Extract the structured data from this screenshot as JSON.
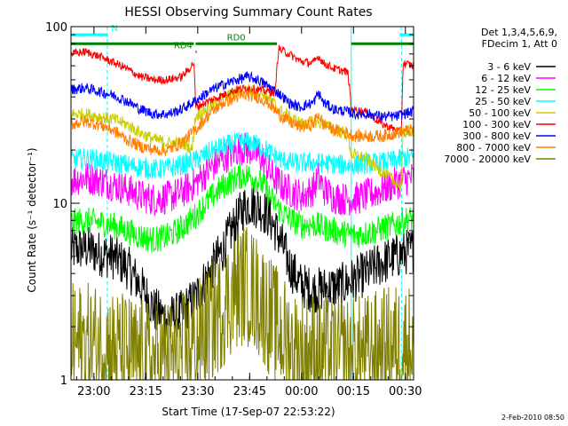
{
  "chart_data": {
    "type": "line",
    "title": "HESSI Observing Summary Count Rates",
    "xlabel": "Start Time (17-Sep-07 22:53:22)",
    "ylabel": "Count Rate (s⁻¹ detector⁻¹)",
    "x_range_min": [
      0,
      99
    ],
    "y_range": [
      1,
      100
    ],
    "y_scale": "log",
    "x_ticks": [
      {
        "t": 6.63,
        "label": "23:00"
      },
      {
        "t": 21.63,
        "label": "23:15"
      },
      {
        "t": 36.63,
        "label": "23:30"
      },
      {
        "t": 51.63,
        "label": "23:45"
      },
      {
        "t": 66.63,
        "label": "00:00"
      },
      {
        "t": 81.63,
        "label": "00:15"
      },
      {
        "t": 96.63,
        "label": "00:30"
      }
    ],
    "y_ticks": [
      {
        "v": 1,
        "label": "1"
      },
      {
        "v": 10,
        "label": "10"
      },
      {
        "v": 100,
        "label": "100"
      }
    ],
    "legend_header": [
      "Det 1,3,4,5,6,9,",
      "FDecim 1, Att 0"
    ],
    "legend_placement": "right",
    "series": [
      {
        "name": "3 - 6 keV",
        "color": "#000000",
        "points": [
          [
            0,
            5.4
          ],
          [
            4,
            5.6
          ],
          [
            8,
            5.2
          ],
          [
            12,
            5.0
          ],
          [
            16,
            4.4
          ],
          [
            20,
            3.4
          ],
          [
            24,
            2.5
          ],
          [
            28,
            2.2
          ],
          [
            32,
            2.4
          ],
          [
            36,
            2.9
          ],
          [
            40,
            4.0
          ],
          [
            44,
            5.5
          ],
          [
            48,
            8.0
          ],
          [
            50,
            9.5
          ],
          [
            52,
            10.0
          ],
          [
            54,
            9.6
          ],
          [
            57,
            8.5
          ],
          [
            60,
            6.5
          ],
          [
            63,
            4.5
          ],
          [
            66,
            3.5
          ],
          [
            70,
            3.2
          ],
          [
            74,
            3.3
          ],
          [
            78,
            3.4
          ],
          [
            82,
            3.7
          ],
          [
            86,
            4.1
          ],
          [
            90,
            4.6
          ],
          [
            94,
            5.0
          ],
          [
            96,
            5.2
          ],
          [
            99,
            5.5
          ]
        ]
      },
      {
        "name": "6 - 12 keV",
        "color": "#ff00ff",
        "points": [
          [
            0,
            13.5
          ],
          [
            4,
            14.0
          ],
          [
            8,
            13.5
          ],
          [
            12,
            12.8
          ],
          [
            16,
            12.0
          ],
          [
            20,
            11.0
          ],
          [
            24,
            10.5
          ],
          [
            28,
            10.8
          ],
          [
            32,
            11.5
          ],
          [
            36,
            13.0
          ],
          [
            40,
            15.5
          ],
          [
            44,
            18.0
          ],
          [
            48,
            20.0
          ],
          [
            50,
            20.5
          ],
          [
            52,
            20.0
          ],
          [
            55,
            18.0
          ],
          [
            58,
            14.5
          ],
          [
            61,
            12.5
          ],
          [
            64,
            11.5
          ],
          [
            67,
            11.0
          ],
          [
            70,
            12.0
          ],
          [
            71.5,
            14.0
          ],
          [
            73,
            12.0
          ],
          [
            76,
            10.8
          ],
          [
            80,
            10.5
          ],
          [
            84,
            10.8
          ],
          [
            88,
            11.5
          ],
          [
            92,
            12.5
          ],
          [
            96,
            13.5
          ],
          [
            99,
            14.0
          ]
        ]
      },
      {
        "name": "12 - 25 keV",
        "color": "#00ff00",
        "points": [
          [
            0,
            7.8
          ],
          [
            4,
            8.0
          ],
          [
            8,
            7.8
          ],
          [
            12,
            7.5
          ],
          [
            16,
            7.0
          ],
          [
            20,
            6.5
          ],
          [
            24,
            6.2
          ],
          [
            28,
            6.5
          ],
          [
            32,
            7.2
          ],
          [
            36,
            8.5
          ],
          [
            40,
            10.5
          ],
          [
            44,
            12.5
          ],
          [
            48,
            14.0
          ],
          [
            50,
            14.5
          ],
          [
            52,
            14.2
          ],
          [
            55,
            13.0
          ],
          [
            58,
            10.5
          ],
          [
            61,
            8.8
          ],
          [
            64,
            8.0
          ],
          [
            67,
            7.5
          ],
          [
            70,
            7.6
          ],
          [
            74,
            7.2
          ],
          [
            78,
            6.8
          ],
          [
            82,
            6.6
          ],
          [
            86,
            6.8
          ],
          [
            90,
            7.2
          ],
          [
            94,
            7.6
          ],
          [
            96,
            8.0
          ],
          [
            99,
            8.2
          ]
        ]
      },
      {
        "name": "25 - 50 keV",
        "color": "#00ffff",
        "points": [
          [
            0,
            17.5
          ],
          [
            4,
            18.0
          ],
          [
            8,
            17.5
          ],
          [
            12,
            17.0
          ],
          [
            16,
            16.5
          ],
          [
            20,
            16.0
          ],
          [
            24,
            15.5
          ],
          [
            28,
            15.8
          ],
          [
            32,
            16.5
          ],
          [
            36,
            17.5
          ],
          [
            40,
            19.5
          ],
          [
            44,
            21.0
          ],
          [
            48,
            22.0
          ],
          [
            50,
            22.5
          ],
          [
            52,
            22.0
          ],
          [
            55,
            21.0
          ],
          [
            58,
            19.0
          ],
          [
            61,
            17.5
          ],
          [
            64,
            17.0
          ],
          [
            67,
            16.8
          ],
          [
            70,
            17.0
          ],
          [
            74,
            16.8
          ],
          [
            78,
            16.5
          ],
          [
            82,
            16.5
          ],
          [
            86,
            16.8
          ],
          [
            90,
            17.0
          ],
          [
            94,
            17.5
          ],
          [
            96,
            18.0
          ],
          [
            99,
            18.2
          ]
        ]
      },
      {
        "name": "50 - 100 keV",
        "color": "#cccc00",
        "points": [
          [
            0,
            32
          ],
          [
            4,
            32
          ],
          [
            8,
            31
          ],
          [
            12,
            30
          ],
          [
            16,
            28
          ],
          [
            20,
            25
          ],
          [
            24,
            23
          ],
          [
            28,
            22
          ],
          [
            32,
            22
          ],
          [
            34,
            21
          ],
          [
            35,
            20
          ],
          [
            36,
            31
          ],
          [
            40,
            35
          ],
          [
            44,
            39
          ],
          [
            48,
            43
          ],
          [
            51,
            44
          ],
          [
            54,
            43
          ],
          [
            57,
            40
          ],
          [
            59,
            36
          ],
          [
            60,
            34
          ],
          [
            64,
            30
          ],
          [
            67,
            28
          ],
          [
            70,
            29
          ],
          [
            73,
            28
          ],
          [
            76,
            26
          ],
          [
            79,
            25
          ],
          [
            80,
            24
          ],
          [
            81,
            19
          ],
          [
            85,
            18
          ],
          [
            90,
            15
          ],
          [
            94,
            13
          ],
          [
            95.5,
            12.5
          ],
          [
            96,
            25
          ],
          [
            99,
            26
          ]
        ]
      },
      {
        "name": "100 - 300 keV",
        "color": "#ff0000",
        "points": [
          [
            0,
            70
          ],
          [
            4,
            72
          ],
          [
            8,
            68
          ],
          [
            12,
            63
          ],
          [
            16,
            58
          ],
          [
            20,
            52
          ],
          [
            24,
            50
          ],
          [
            28,
            50
          ],
          [
            32,
            52
          ],
          [
            34,
            57
          ],
          [
            35.5,
            63
          ],
          [
            36,
            35
          ],
          [
            40,
            38
          ],
          [
            44,
            41
          ],
          [
            48,
            44
          ],
          [
            51,
            45
          ],
          [
            54,
            44
          ],
          [
            57,
            43
          ],
          [
            59,
            42
          ],
          [
            60,
            75
          ],
          [
            63,
            70
          ],
          [
            66,
            64
          ],
          [
            70,
            62
          ],
          [
            71.5,
            68
          ],
          [
            73,
            62
          ],
          [
            76,
            58
          ],
          [
            80,
            55
          ],
          [
            81,
            34
          ],
          [
            85,
            33
          ],
          [
            90,
            28
          ],
          [
            94,
            26
          ],
          [
            95.5,
            25
          ],
          [
            96,
            62
          ],
          [
            99,
            60
          ]
        ]
      },
      {
        "name": "300 - 800 keV",
        "color": "#0000ff",
        "points": [
          [
            0,
            44
          ],
          [
            4,
            45
          ],
          [
            8,
            43
          ],
          [
            12,
            41
          ],
          [
            16,
            38
          ],
          [
            20,
            34
          ],
          [
            24,
            32
          ],
          [
            28,
            32
          ],
          [
            32,
            34
          ],
          [
            36,
            38
          ],
          [
            40,
            43
          ],
          [
            44,
            47
          ],
          [
            48,
            50
          ],
          [
            51,
            52
          ],
          [
            54,
            50
          ],
          [
            57,
            46
          ],
          [
            60,
            42
          ],
          [
            63,
            37
          ],
          [
            66,
            35
          ],
          [
            70,
            37
          ],
          [
            71.5,
            42
          ],
          [
            73,
            37
          ],
          [
            76,
            34
          ],
          [
            80,
            33
          ],
          [
            82,
            32
          ],
          [
            86,
            32
          ],
          [
            90,
            31
          ],
          [
            94,
            31
          ],
          [
            96,
            32
          ],
          [
            99,
            33
          ]
        ]
      },
      {
        "name": "800 - 7000 keV",
        "color": "#ff8000",
        "points": [
          [
            0,
            28
          ],
          [
            4,
            29
          ],
          [
            8,
            28
          ],
          [
            12,
            26
          ],
          [
            16,
            23
          ],
          [
            20,
            21
          ],
          [
            24,
            20
          ],
          [
            28,
            20
          ],
          [
            32,
            22
          ],
          [
            36,
            26
          ],
          [
            40,
            32
          ],
          [
            44,
            37
          ],
          [
            48,
            40
          ],
          [
            51,
            41
          ],
          [
            54,
            40
          ],
          [
            57,
            37
          ],
          [
            60,
            32
          ],
          [
            63,
            29
          ],
          [
            66,
            27
          ],
          [
            70,
            28
          ],
          [
            71.5,
            32
          ],
          [
            73,
            28
          ],
          [
            76,
            26
          ],
          [
            80,
            25
          ],
          [
            82,
            24
          ],
          [
            86,
            24
          ],
          [
            90,
            24
          ],
          [
            94,
            25
          ],
          [
            96,
            25.5
          ],
          [
            99,
            26
          ]
        ]
      },
      {
        "name": "7000 - 20000 keV",
        "color": "#808000",
        "points": [
          [
            0,
            1.6
          ],
          [
            4,
            1.6
          ],
          [
            8,
            1.6
          ],
          [
            12,
            1.5
          ],
          [
            16,
            1.4
          ],
          [
            20,
            1.3
          ],
          [
            24,
            1.25
          ],
          [
            28,
            1.3
          ],
          [
            32,
            1.4
          ],
          [
            36,
            1.6
          ],
          [
            40,
            2.0
          ],
          [
            44,
            2.6
          ],
          [
            48,
            3.3
          ],
          [
            50,
            3.5
          ],
          [
            52,
            3.3
          ],
          [
            55,
            2.8
          ],
          [
            58,
            2.2
          ],
          [
            61,
            1.8
          ],
          [
            64,
            1.5
          ],
          [
            67,
            1.4
          ],
          [
            70,
            1.45
          ],
          [
            74,
            1.4
          ],
          [
            78,
            1.35
          ],
          [
            82,
            1.35
          ],
          [
            86,
            1.4
          ],
          [
            90,
            1.5
          ],
          [
            94,
            1.6
          ],
          [
            96,
            1.6
          ],
          [
            99,
            1.6
          ]
        ]
      }
    ],
    "state_bars": [
      {
        "label": "N",
        "color": "#00ffff",
        "y": 90,
        "segments": [
          [
            0,
            10.5
          ],
          [
            95,
            99
          ]
        ]
      },
      {
        "label": "",
        "color": "#008000",
        "y": 80,
        "segments": [
          [
            0,
            35.5
          ],
          [
            81,
            99
          ]
        ]
      },
      {
        "label": "RD0",
        "color": "#008000",
        "y": 80,
        "segments": [
          [
            36,
            59.5
          ]
        ]
      },
      {
        "label": "RD4",
        "color": "#008000",
        "y": 72,
        "segments": [
          [
            36,
            36.3
          ]
        ]
      }
    ],
    "vertical_markers": [
      {
        "t": 10.5,
        "color": "#00ffff",
        "style": "dashed"
      },
      {
        "t": 81,
        "color": "#00ffff",
        "style": "solid"
      },
      {
        "t": 95.5,
        "color": "#00ffff",
        "style": "dashed"
      }
    ],
    "footer_date": "2-Feb-2010 08:50"
  }
}
